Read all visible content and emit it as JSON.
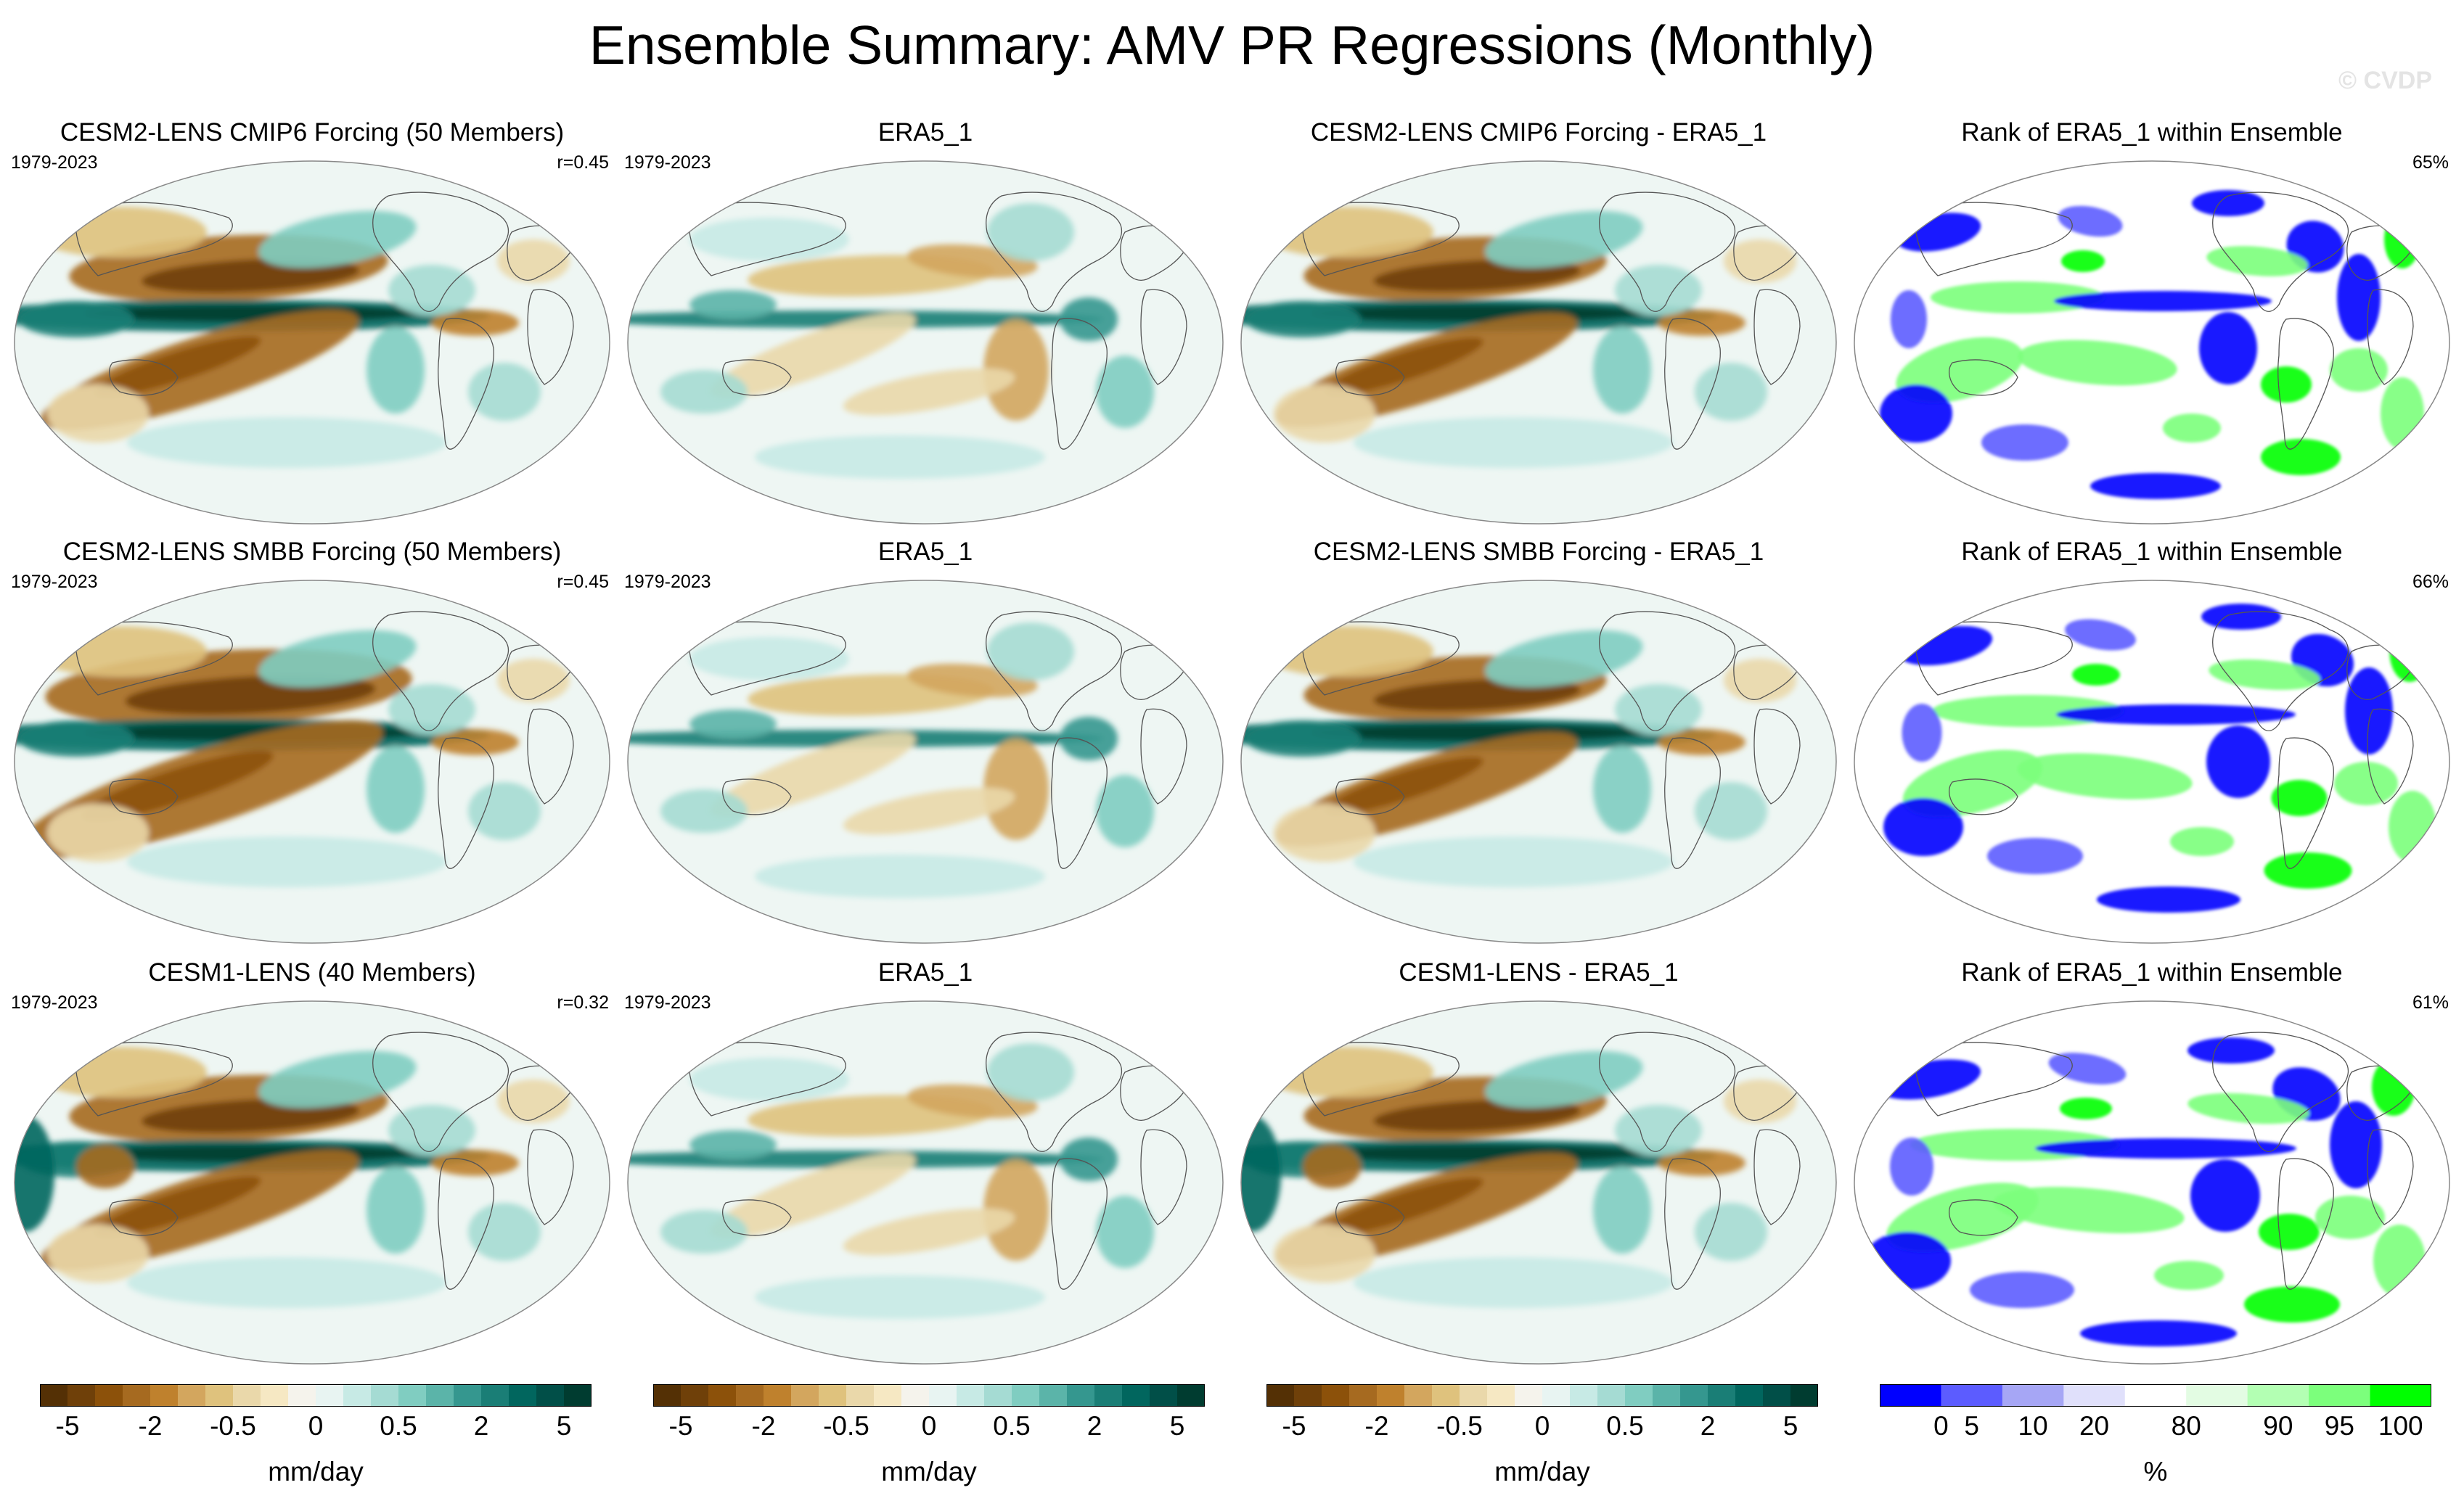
{
  "title": "Ensemble Summary: AMV PR Regressions (Monthly)",
  "credit": "© CVDP",
  "colors": {
    "brbg": [
      "#543005",
      "#6f4009",
      "#8c510a",
      "#a66a20",
      "#bf812d",
      "#d3a65e",
      "#dfc27d",
      "#ead8aa",
      "#f6e8c3",
      "#f5f3ec",
      "#e8f4f2",
      "#c7eae5",
      "#a5dbd3",
      "#80cdc1",
      "#5bb4a9",
      "#35978f",
      "#1a7e76",
      "#01665e",
      "#014f48",
      "#003c30"
    ],
    "rank": [
      "#0000ff",
      "#5c5cff",
      "#a6a6f5",
      "#e0e0fb",
      "#ffffff",
      "#e3fce3",
      "#b3ffb3",
      "#7cff7c",
      "#00ff00"
    ]
  },
  "rows": [
    {
      "ens": {
        "title": "CESM2-LENS CMIP6 Forcing (50 Members)",
        "years": "1979-2023",
        "stat": "r=0.45"
      },
      "obs": {
        "title": "ERA5_1",
        "years": "1979-2023"
      },
      "diff": {
        "title": "CESM2-LENS CMIP6 Forcing - ERA5_1"
      },
      "rank": {
        "title": "Rank of ERA5_1 within Ensemble",
        "stat": "65%"
      }
    },
    {
      "ens": {
        "title": "CESM2-LENS SMBB Forcing (50 Members)",
        "years": "1979-2023",
        "stat": "r=0.45"
      },
      "obs": {
        "title": "ERA5_1",
        "years": "1979-2023"
      },
      "diff": {
        "title": "CESM2-LENS SMBB Forcing - ERA5_1"
      },
      "rank": {
        "title": "Rank of ERA5_1 within Ensemble",
        "stat": "66%"
      }
    },
    {
      "ens": {
        "title": "CESM1-LENS (40 Members)",
        "years": "1979-2023",
        "stat": "r=0.32"
      },
      "obs": {
        "title": "ERA5_1",
        "years": "1979-2023"
      },
      "diff": {
        "title": "CESM1-LENS - ERA5_1"
      },
      "rank": {
        "title": "Rank of ERA5_1 within Ensemble",
        "stat": "61%"
      }
    }
  ],
  "colorbars": {
    "pr": {
      "label": "mm/day",
      "ticks": [
        "-5",
        "-2",
        "-0.5",
        "0",
        "0.5",
        "2",
        "5"
      ]
    },
    "rank": {
      "label": "%",
      "ticks": [
        "0",
        "5",
        "10",
        "20",
        "80",
        "90",
        "95",
        "100"
      ]
    }
  },
  "chart_data": [
    {
      "type": "heatmap",
      "title": "Ensemble Summary: AMV PR Regressions (Monthly)",
      "projection": "global map, Robinson-like",
      "variable": "PR regression on AMV",
      "units": "mm/day",
      "period": "1979-2023",
      "columns": [
        "ensemble mean",
        "ERA5_1",
        "ensemble - ERA5_1",
        "Rank of ERA5_1 within Ensemble"
      ],
      "panels": [
        {
          "row": 1,
          "ensemble": "CESM2-LENS CMIP6 Forcing (50 Members)",
          "pattern_correlation": 0.45,
          "rank_percent": 65
        },
        {
          "row": 2,
          "ensemble": "CESM2-LENS SMBB Forcing (50 Members)",
          "pattern_correlation": 0.45,
          "rank_percent": 66
        },
        {
          "row": 3,
          "ensemble": "CESM1-LENS (40 Members)",
          "pattern_correlation": 0.32,
          "rank_percent": 61
        }
      ],
      "colorbar_levels": [
        -5,
        -2,
        -0.5,
        0,
        0.5,
        2,
        5
      ],
      "rank_levels": [
        0,
        5,
        10,
        20,
        80,
        90,
        95,
        100
      ]
    }
  ]
}
